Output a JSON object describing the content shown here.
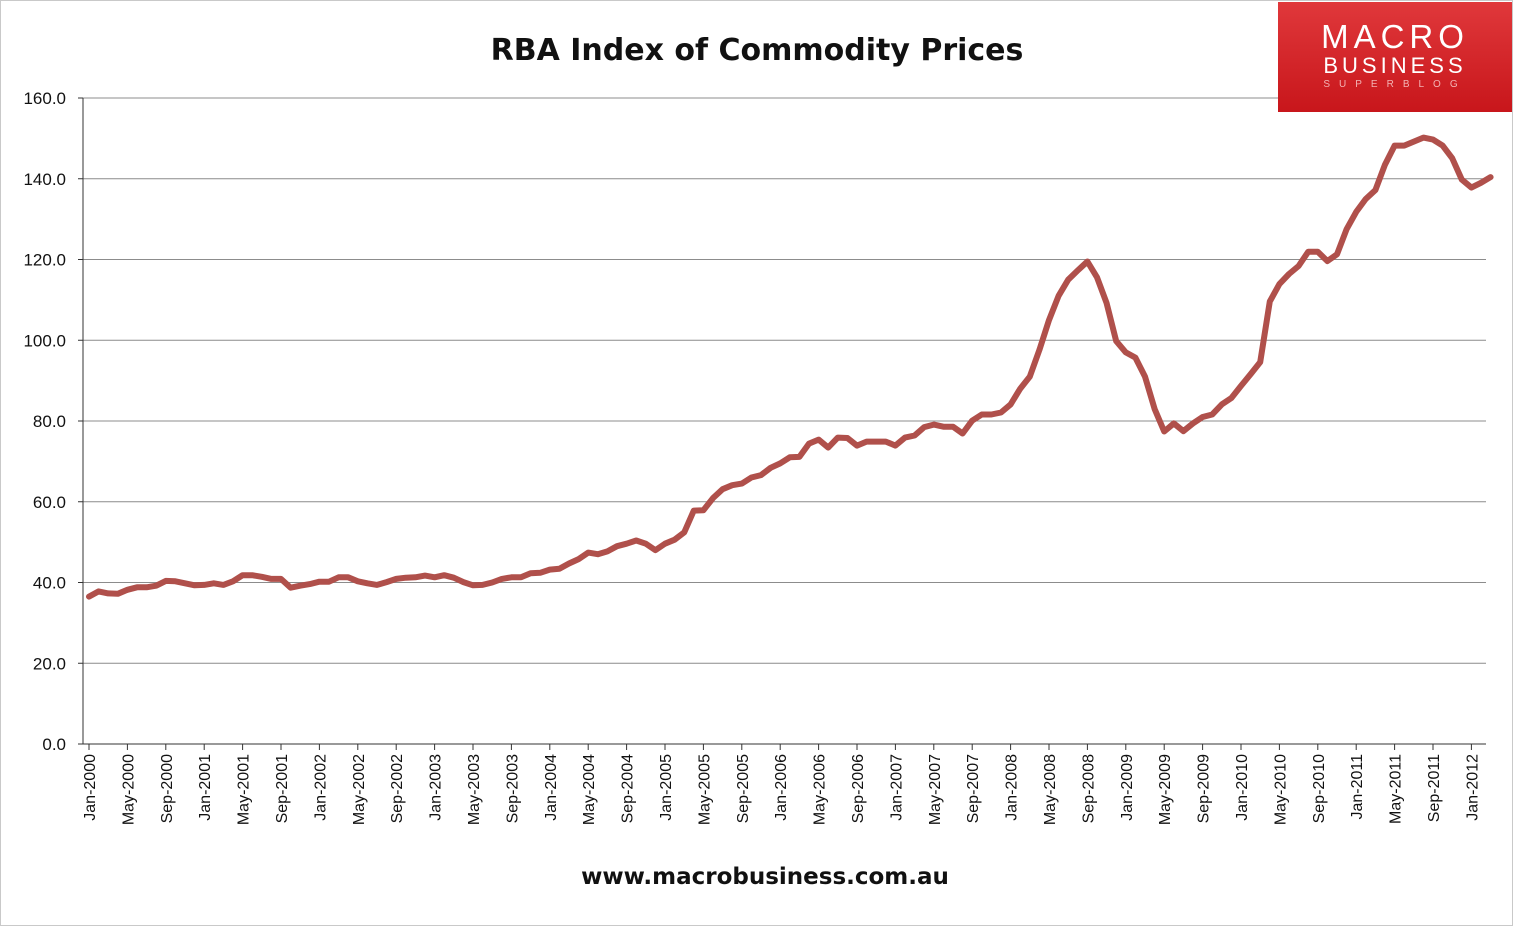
{
  "branding": {
    "logo_line1": "MACRO",
    "logo_line2": "BUSINESS",
    "logo_line3": "SUPERBLOG",
    "brand_color": "#d0262a"
  },
  "footer": {
    "url": "www.macrobusiness.com.au"
  },
  "chart_data": {
    "type": "line",
    "title": "RBA Index of Commodity Prices",
    "xlabel": "",
    "ylabel": "",
    "ylim": [
      0,
      160
    ],
    "y_ticks": [
      "0.0",
      "20.0",
      "40.0",
      "60.0",
      "80.0",
      "100.0",
      "120.0",
      "140.0",
      "160.0"
    ],
    "x_ticks": [
      "Jan-2000",
      "May-2000",
      "Sep-2000",
      "Jan-2001",
      "May-2001",
      "Sep-2001",
      "Jan-2002",
      "May-2002",
      "Sep-2002",
      "Jan-2003",
      "May-2003",
      "Sep-2003",
      "Jan-2004",
      "May-2004",
      "Sep-2004",
      "Jan-2005",
      "May-2005",
      "Sep-2005",
      "Jan-2006",
      "May-2006",
      "Sep-2006",
      "Jan-2007",
      "May-2007",
      "Sep-2007",
      "Jan-2008",
      "May-2008",
      "Sep-2008",
      "Jan-2009",
      "May-2009",
      "Sep-2009",
      "Jan-2010",
      "May-2010",
      "Sep-2010",
      "Jan-2011",
      "May-2011",
      "Sep-2011",
      "Jan-2012"
    ],
    "grid": true,
    "legend": "none",
    "line_color": "#b0504b",
    "series": [
      {
        "start": "Jan-2000",
        "frequency": "monthly",
        "values": [
          36.5,
          37.8,
          37.3,
          37.2,
          38.2,
          38.8,
          38.8,
          39.2,
          40.4,
          40.3,
          39.8,
          39.3,
          39.4,
          39.8,
          39.4,
          40.3,
          41.8,
          41.8,
          41.4,
          40.9,
          40.9,
          38.7,
          39.2,
          39.6,
          40.2,
          40.2,
          41.3,
          41.3,
          40.3,
          39.8,
          39.4,
          40.1,
          40.9,
          41.2,
          41.3,
          41.7,
          41.3,
          41.8,
          41.2,
          40.1,
          39.3,
          39.4,
          40.0,
          40.9,
          41.3,
          41.3,
          42.3,
          42.4,
          43.2,
          43.4,
          44.7,
          45.8,
          47.4,
          47.0,
          47.7,
          49.0,
          49.6,
          50.4,
          49.6,
          48.0,
          49.6,
          50.6,
          52.4,
          57.8,
          57.9,
          60.9,
          63.1,
          64.1,
          64.5,
          66.0,
          66.6,
          68.4,
          69.5,
          71.0,
          71.1,
          74.4,
          75.4,
          73.4,
          75.9,
          75.8,
          73.9,
          74.9,
          74.9,
          74.9,
          73.9,
          75.9,
          76.4,
          78.5,
          79.1,
          78.6,
          78.6,
          76.9,
          80.1,
          81.6,
          81.6,
          82.1,
          84.1,
          88.0,
          91.0,
          97.6,
          105.0,
          111.0,
          115.0,
          117.3,
          119.5,
          115.6,
          109.2,
          99.8,
          97.0,
          95.7,
          91.0,
          83.0,
          77.4,
          79.4,
          77.5,
          79.4,
          81.0,
          81.6,
          84.1,
          85.7,
          88.7,
          91.6,
          94.6,
          109.6,
          113.9,
          116.4,
          118.4,
          121.9,
          121.9,
          119.6,
          121.3,
          127.5,
          131.8,
          135.0,
          137.2,
          143.5,
          148.2,
          148.2,
          149.2,
          150.2,
          149.7,
          148.2,
          145.1,
          139.8,
          137.8,
          139.0,
          140.4
        ]
      }
    ]
  }
}
